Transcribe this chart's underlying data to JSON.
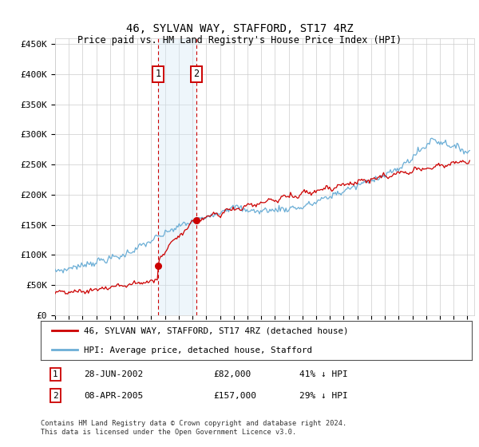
{
  "title": "46, SYLVAN WAY, STAFFORD, ST17 4RZ",
  "subtitle": "Price paid vs. HM Land Registry's House Price Index (HPI)",
  "ylabel_ticks": [
    "£0",
    "£50K",
    "£100K",
    "£150K",
    "£200K",
    "£250K",
    "£300K",
    "£350K",
    "£400K",
    "£450K"
  ],
  "ylim": [
    0,
    460000
  ],
  "xlim_start": 1995.0,
  "xlim_end": 2025.5,
  "hpi_color": "#6baed6",
  "price_color": "#cc0000",
  "marker1_date": 2002.49,
  "marker1_price": 82000,
  "marker1_label": "1",
  "marker2_date": 2005.27,
  "marker2_price": 157000,
  "marker2_label": "2",
  "legend_line1": "46, SYLVAN WAY, STAFFORD, ST17 4RZ (detached house)",
  "legend_line2": "HPI: Average price, detached house, Stafford",
  "row1_num": "1",
  "row1_date": "28-JUN-2002",
  "row1_price": "£82,000",
  "row1_hpi": "41% ↓ HPI",
  "row2_num": "2",
  "row2_date": "08-APR-2005",
  "row2_price": "£157,000",
  "row2_hpi": "29% ↓ HPI",
  "footnote": "Contains HM Land Registry data © Crown copyright and database right 2024.\nThis data is licensed under the Open Government Licence v3.0.",
  "background_color": "#ffffff",
  "grid_color": "#cccccc",
  "shade_color": "#d0e8f5"
}
